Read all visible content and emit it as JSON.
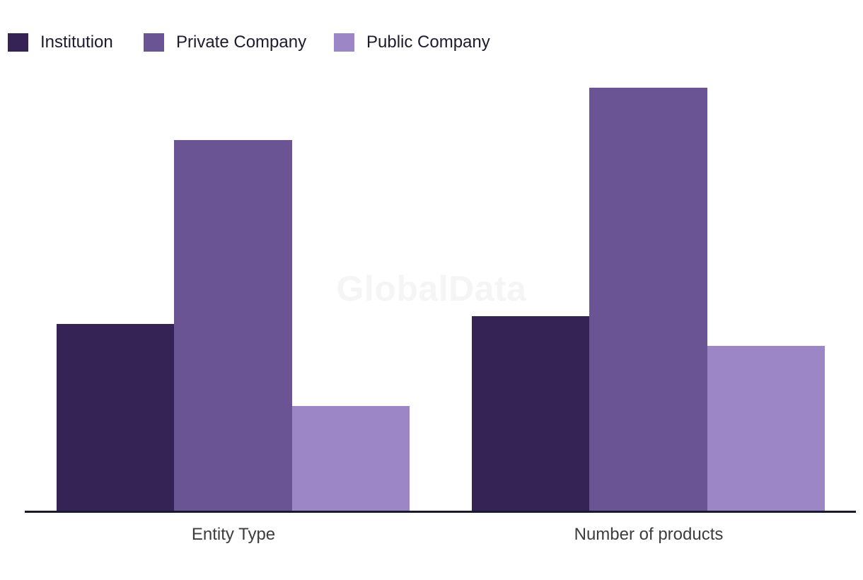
{
  "watermark": "GlobalData",
  "legend": {
    "items": [
      {
        "label": "Institution",
        "color": "#362355"
      },
      {
        "label": "Private Company",
        "color": "#6b5493"
      },
      {
        "label": "Public Company",
        "color": "#9c86c6"
      }
    ]
  },
  "chart_data": {
    "type": "bar",
    "title": "",
    "xlabel": "",
    "ylabel": "",
    "categories": [
      "Entity Type",
      "Number of products"
    ],
    "series": [
      {
        "name": "Institution",
        "color": "#362355",
        "values": [
          265,
          276
        ]
      },
      {
        "name": "Private Company",
        "color": "#6b5493",
        "values": [
          525,
          599
        ]
      },
      {
        "name": "Public Company",
        "color": "#9c86c6",
        "values": [
          149,
          234
        ]
      }
    ],
    "value_unit": "relative height (no y-axis scale or gridlines shown)",
    "y_axis_visible": false,
    "grid": false,
    "legend_position": "top-left",
    "axis_line_color": "#181b2e",
    "label_color": "#3d3d3d",
    "watermark_text": "GlobalData"
  }
}
